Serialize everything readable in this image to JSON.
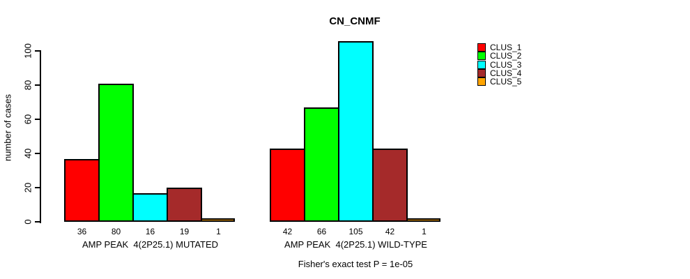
{
  "title": "CN_CNMF",
  "colors": {
    "background": "#ffffff",
    "axis": "#000000",
    "text": "#000000"
  },
  "chart_data": {
    "type": "bar",
    "title": "CN_CNMF",
    "xlabel": "",
    "ylabel": "number of cases",
    "ylim": [
      0,
      100
    ],
    "yticks": [
      0,
      20,
      40,
      60,
      80,
      100
    ],
    "grid": false,
    "legend_position": "right-outside",
    "categories": [
      "AMP PEAK  4(2P25.1) MUTATED",
      "AMP PEAK  4(2P25.1) WILD-TYPE"
    ],
    "series": [
      {
        "name": "CLUS_1",
        "color": "#ff0000",
        "values": [
          36,
          42
        ]
      },
      {
        "name": "CLUS_2",
        "color": "#00ff00",
        "values": [
          80,
          66
        ]
      },
      {
        "name": "CLUS_3",
        "color": "#00ffff",
        "values": [
          16,
          105
        ]
      },
      {
        "name": "CLUS_4",
        "color": "#a52a2a",
        "values": [
          19,
          42
        ]
      },
      {
        "name": "CLUS_5",
        "color": "#ffa500",
        "values": [
          1,
          1
        ]
      }
    ],
    "bar_value_labels": [
      [
        36,
        80,
        16,
        19,
        1
      ],
      [
        42,
        66,
        105,
        42,
        1
      ]
    ],
    "annotation": "Fisher's exact test P = 1e-05"
  }
}
